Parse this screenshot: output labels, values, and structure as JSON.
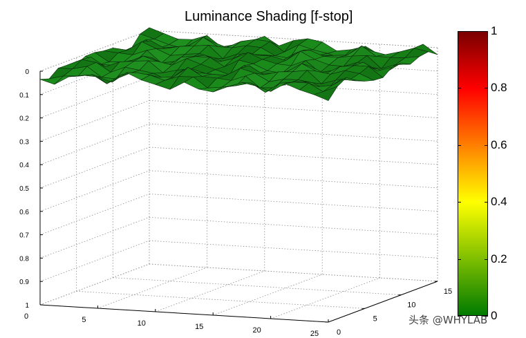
{
  "chart_data": {
    "type": "surface",
    "title": "Luminance Shading [f-stop]",
    "x_ticks": [
      "0",
      "5",
      "10",
      "15",
      "20",
      "25"
    ],
    "y_ticks": [
      "0",
      "5",
      "10",
      "15"
    ],
    "z_ticks": [
      "0",
      "0.1",
      "0.2",
      "0.3",
      "0.4",
      "0.5",
      "0.6",
      "0.7",
      "0.8",
      "0.9",
      "1"
    ],
    "xlim": [
      0,
      25
    ],
    "ylim": [
      0,
      15
    ],
    "zlim": [
      0,
      1
    ],
    "z_reversed": true,
    "grid": true,
    "colormap_stops": [
      "#007a00",
      "#7fbf00",
      "#ffff00",
      "#ff7f00",
      "#ff0000",
      "#7a0000"
    ],
    "colorbar_ticks": [
      "0",
      "0.2",
      "0.4",
      "0.6",
      "0.8",
      "1"
    ],
    "surface_color": "#1a8a1a",
    "surface_z_approx": 0.02
  },
  "watermark": "头条 @WHYLAB"
}
